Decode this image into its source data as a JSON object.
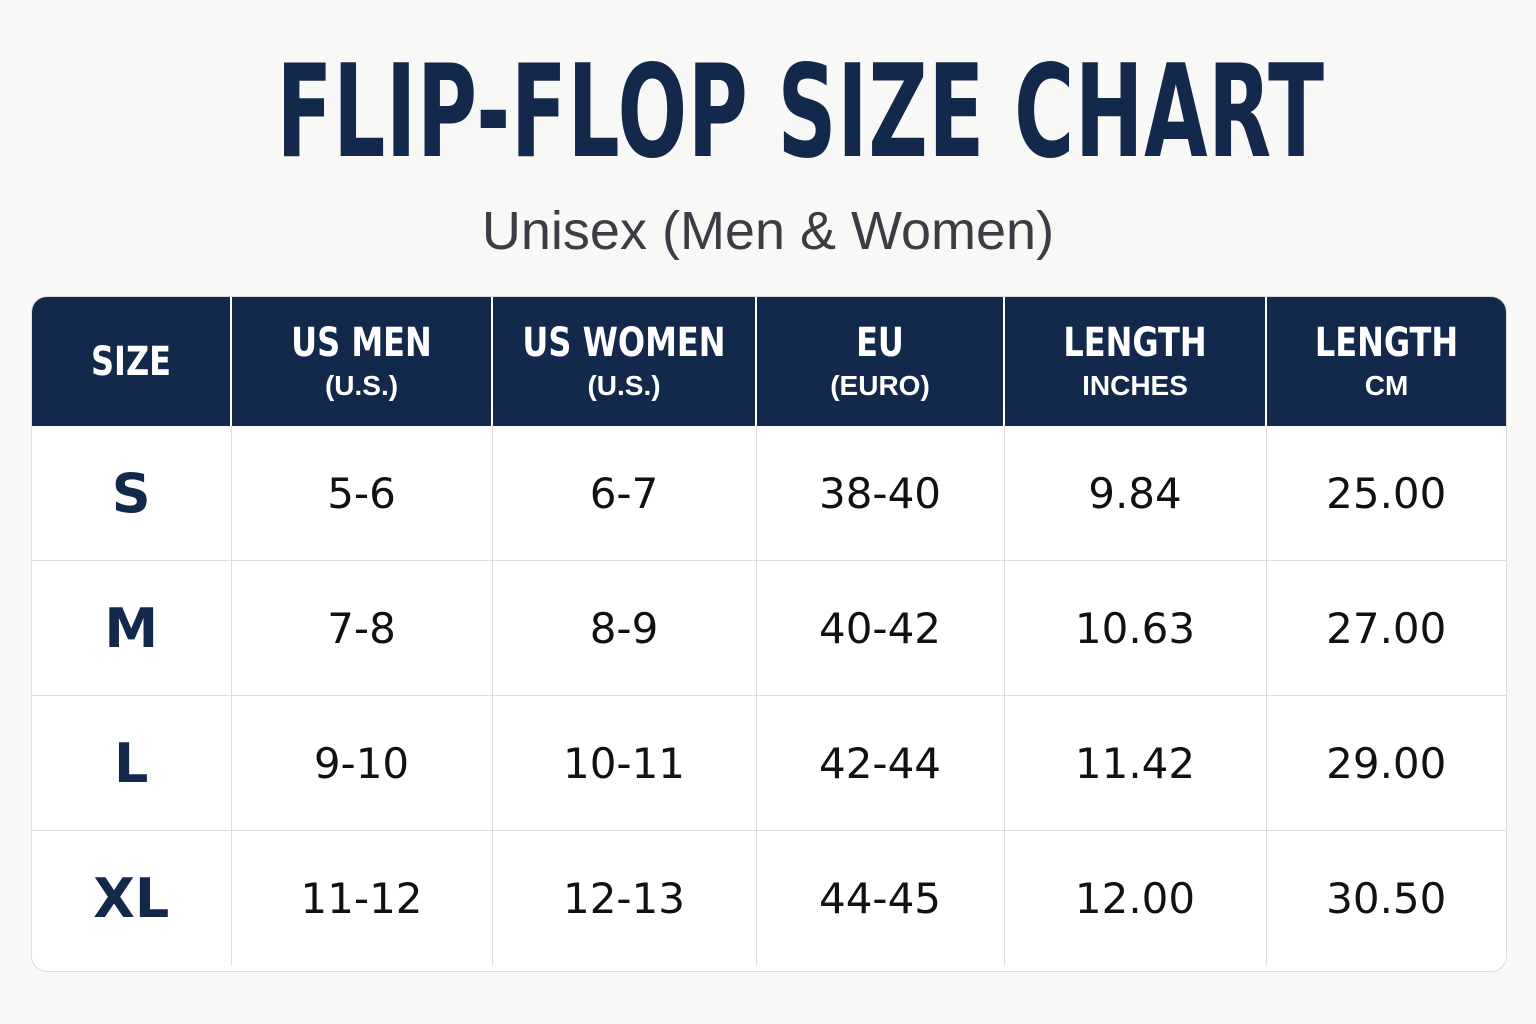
{
  "title": "FLIP-FLOP SIZE CHART",
  "subtitle": "Unisex (Men & Women)",
  "colors": {
    "navy": "#13294b",
    "background": "#f8f8f7",
    "subtitle_gray": "#3a3d44",
    "grid_line": "#dddddd"
  },
  "table": {
    "headers": [
      {
        "label": "SIZE",
        "sub": ""
      },
      {
        "label": "US MEN",
        "sub": "(U.S.)"
      },
      {
        "label": "US WOMEN",
        "sub": "(U.S.)"
      },
      {
        "label": "EU",
        "sub": "(EURO)"
      },
      {
        "label": "LENGTH",
        "sub": "INCHES"
      },
      {
        "label": "LENGTH",
        "sub": "CM"
      }
    ],
    "rows": [
      [
        "S",
        "5-6",
        "6-7",
        "38-40",
        "9.84",
        "25.00"
      ],
      [
        "M",
        "7-8",
        "8-9",
        "40-42",
        "10.63",
        "27.00"
      ],
      [
        "L",
        "9-10",
        "10-11",
        "42-44",
        "11.42",
        "29.00"
      ],
      [
        "XL",
        "11-12",
        "12-13",
        "44-45",
        "12.00",
        "30.50"
      ]
    ]
  }
}
